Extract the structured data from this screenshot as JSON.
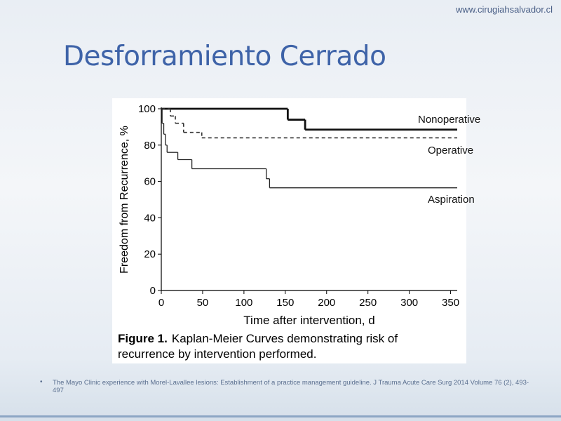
{
  "header": {
    "url": "www.cirugiahsalvador.cl"
  },
  "slide": {
    "title": "Desforramiento Cerrado",
    "citation": "The Mayo Clinic experience with Morel-Lavallee lesions: Establishment of a practice management guideline. J Trauma Acute Care Surg 2014  Volume 76 (2), 493-497"
  },
  "figure": {
    "label": "Figure 1.",
    "caption_lines": [
      "Kaplan-Meier Curves demonstrating risk of",
      "recurrence by intervention performed."
    ]
  },
  "chart_data": {
    "type": "step",
    "xlabel": "Time after intervention, d",
    "ylabel": "Freedom from Recurrence, %",
    "xlim": [
      0,
      358
    ],
    "ylim": [
      0,
      100
    ],
    "xticks": [
      0,
      50,
      100,
      150,
      200,
      250,
      300,
      350
    ],
    "yticks": [
      0,
      20,
      40,
      60,
      80,
      100
    ],
    "series": [
      {
        "name": "Nonoperative",
        "color": "#111111",
        "line_style": "solid",
        "x": [
          0,
          153,
          174
        ],
        "values": [
          100,
          94,
          88.5
        ]
      },
      {
        "name": "Operative",
        "color": "#333333",
        "line_style": "dashed",
        "x": [
          0,
          11,
          17,
          27,
          49
        ],
        "values": [
          100,
          96,
          92,
          87,
          84
        ]
      },
      {
        "name": "Aspiration",
        "color": "#222222",
        "line_style": "solid",
        "x": [
          0,
          1,
          3,
          5,
          7,
          20,
          37,
          127,
          131
        ],
        "values": [
          100,
          92,
          86,
          80,
          76,
          72,
          67,
          61.5,
          56.5
        ]
      }
    ]
  }
}
